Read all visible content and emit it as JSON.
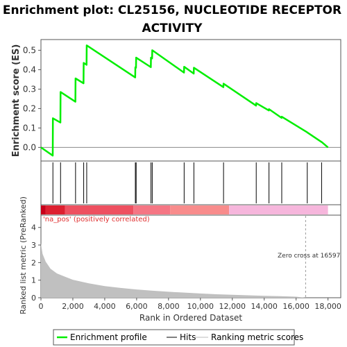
{
  "chart_data": {
    "type": "line",
    "title": "Enrichment plot: CL25156, NUCLEOTIDE RECEPTOR ACTIVITY",
    "title_lines": [
      "Enrichment plot: CL25156, NUCLEOTIDE RECEPTOR",
      "ACTIVITY"
    ],
    "xlabel": "Rank in Ordered Dataset",
    "ylabel_top": "Enrichment score (ES)",
    "ylabel_bottom": "Ranked list metric (PreRanked)",
    "xlim": [
      0,
      18800
    ],
    "ylim_es": [
      -0.07,
      0.555
    ],
    "ylim_metric": [
      0,
      4.7
    ],
    "x_ticks": [
      0,
      2000,
      4000,
      6000,
      8000,
      10000,
      12000,
      14000,
      16000,
      18000
    ],
    "x_tick_labels": [
      "0",
      "2,000",
      "4,000",
      "6,000",
      "8,000",
      "10,000",
      "12,000",
      "14,000",
      "16,000",
      "18,000"
    ],
    "es_ticks": [
      0.0,
      0.1,
      0.2,
      0.3,
      0.4,
      0.5
    ],
    "es_tick_labels": [
      "0.0",
      "0.1",
      "0.2",
      "0.3",
      "0.4",
      "0.5"
    ],
    "metric_ticks": [
      0,
      1,
      2,
      3,
      4
    ],
    "metric_tick_labels": [
      "0",
      "1",
      "2",
      "3",
      "4"
    ],
    "hits": [
      750,
      1230,
      2170,
      2680,
      2870,
      5920,
      5970,
      6900,
      6980,
      8980,
      9590,
      11450,
      13500,
      14300,
      15100,
      16700,
      17600
    ],
    "es_curve": [
      [
        0,
        0.0
      ],
      [
        740,
        -0.042
      ],
      [
        750,
        0.15
      ],
      [
        1220,
        0.128
      ],
      [
        1230,
        0.285
      ],
      [
        2160,
        0.235
      ],
      [
        2170,
        0.355
      ],
      [
        2670,
        0.33
      ],
      [
        2680,
        0.435
      ],
      [
        2860,
        0.425
      ],
      [
        2870,
        0.525
      ],
      [
        5910,
        0.36
      ],
      [
        5920,
        0.412
      ],
      [
        5960,
        0.41
      ],
      [
        5970,
        0.462
      ],
      [
        6890,
        0.413
      ],
      [
        6900,
        0.462
      ],
      [
        6970,
        0.458
      ],
      [
        6980,
        0.5
      ],
      [
        8970,
        0.385
      ],
      [
        8980,
        0.415
      ],
      [
        9580,
        0.38
      ],
      [
        9590,
        0.41
      ],
      [
        11440,
        0.31
      ],
      [
        11450,
        0.328
      ],
      [
        13490,
        0.215
      ],
      [
        13500,
        0.228
      ],
      [
        14290,
        0.19
      ],
      [
        14300,
        0.197
      ],
      [
        15090,
        0.152
      ],
      [
        15100,
        0.158
      ],
      [
        16690,
        0.078
      ],
      [
        16700,
        0.077
      ],
      [
        17590,
        0.028
      ],
      [
        17600,
        0.028
      ],
      [
        18000,
        0.0
      ]
    ],
    "metric_curve": [
      [
        0,
        3.1
      ],
      [
        100,
        2.5
      ],
      [
        300,
        2.05
      ],
      [
        600,
        1.65
      ],
      [
        1000,
        1.38
      ],
      [
        1500,
        1.2
      ],
      [
        2000,
        1.02
      ],
      [
        3000,
        0.82
      ],
      [
        4000,
        0.66
      ],
      [
        5000,
        0.56
      ],
      [
        6000,
        0.47
      ],
      [
        7000,
        0.4
      ],
      [
        8000,
        0.34
      ],
      [
        9000,
        0.29
      ],
      [
        10000,
        0.24
      ],
      [
        11000,
        0.2
      ],
      [
        12000,
        0.17
      ],
      [
        13000,
        0.14
      ],
      [
        14000,
        0.11
      ],
      [
        15000,
        0.09
      ],
      [
        16000,
        0.06
      ],
      [
        16597,
        0.0
      ],
      [
        18000,
        0.0
      ]
    ],
    "zero_cross_rank": 16597,
    "zero_cross_label": "Zero cross at 16597",
    "pos_label": "'na_pos' (positively correlated)",
    "heatmap_segments": [
      {
        "from": 0,
        "to": 300,
        "color": "#c8001a"
      },
      {
        "from": 300,
        "to": 1500,
        "color": "#dd2030"
      },
      {
        "from": 1500,
        "to": 5800,
        "color": "#ee5060"
      },
      {
        "from": 5800,
        "to": 8100,
        "color": "#f57684"
      },
      {
        "from": 8100,
        "to": 11800,
        "color": "#f88c8c"
      },
      {
        "from": 11800,
        "to": 18000,
        "color": "#f6b6dc"
      }
    ],
    "legend": [
      {
        "label": "Enrichment profile",
        "color": "#00ee00"
      },
      {
        "label": "Hits",
        "color": "#000000"
      },
      {
        "label": "Ranking metric scores",
        "color": "#bbbbbb"
      }
    ],
    "colors": {
      "es_line": "#00ee00",
      "hit_line": "#000000",
      "metric_fill": "#c0c0c0",
      "pos_label": "#e03030"
    }
  }
}
